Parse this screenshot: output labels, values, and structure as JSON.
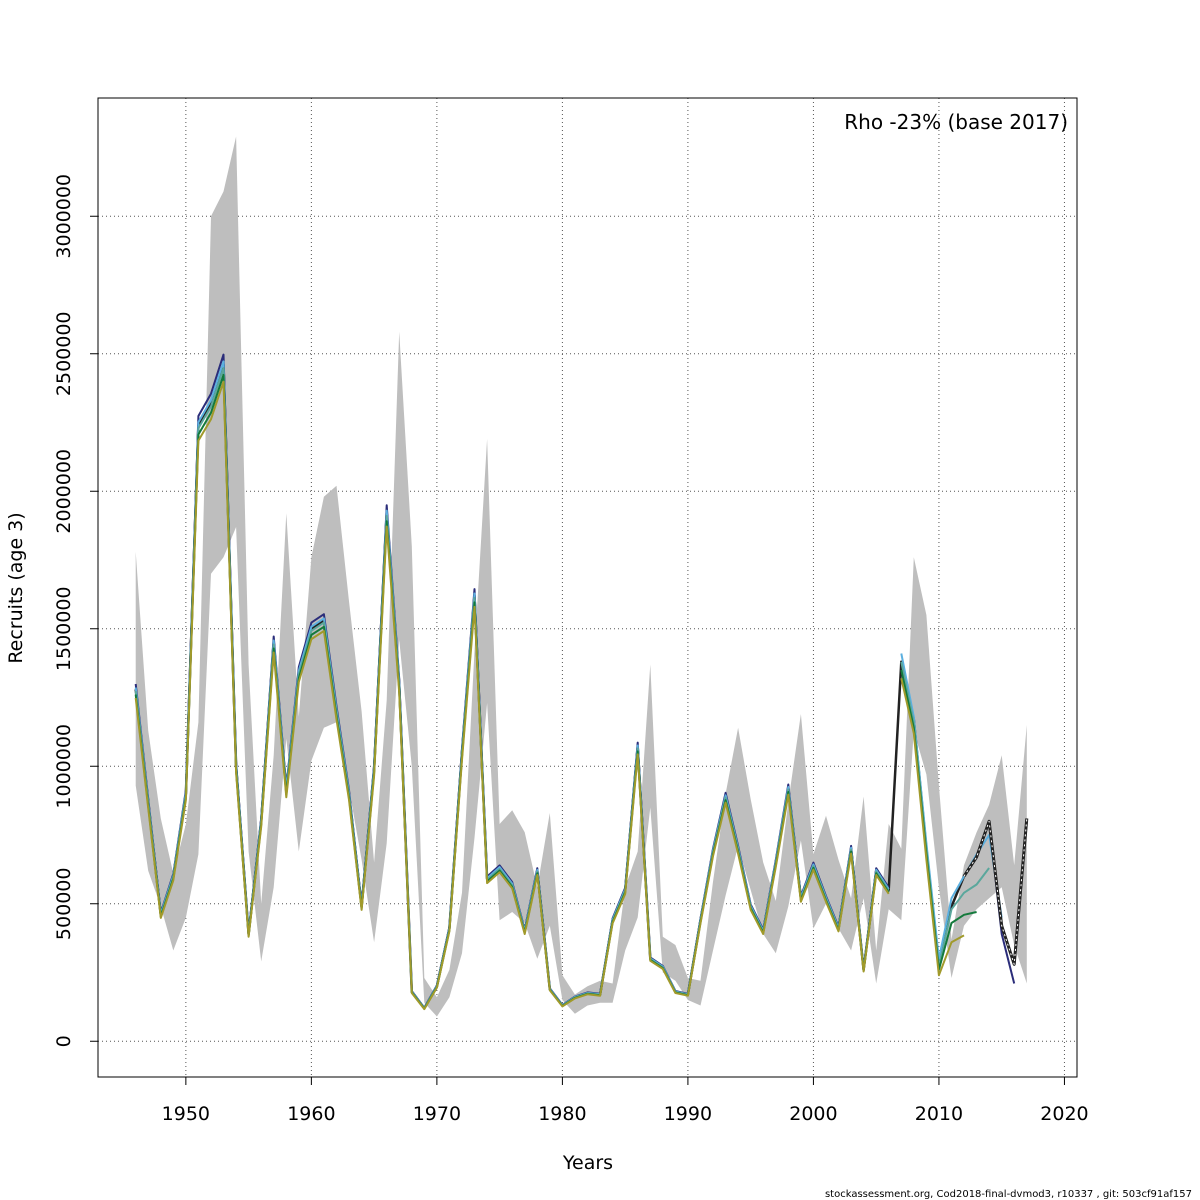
{
  "chart_data": {
    "type": "line",
    "title": "",
    "annotation": "Rho -23% (base 2017)",
    "xlabel": "Years",
    "ylabel": "Recruits (age 3)",
    "xlim": [
      1943,
      2021
    ],
    "ylim": [
      -130000,
      3430000
    ],
    "x_ticks": [
      1950,
      1960,
      1970,
      1980,
      1990,
      2000,
      2010,
      2020
    ],
    "y_ticks": [
      0,
      500000,
      1000000,
      1500000,
      2000000,
      2500000,
      3000000
    ],
    "grid": true,
    "band_color": "#bebebe",
    "years": [
      1946,
      1947,
      1948,
      1949,
      1950,
      1951,
      1952,
      1953,
      1954,
      1955,
      1956,
      1957,
      1958,
      1959,
      1960,
      1961,
      1962,
      1963,
      1964,
      1965,
      1966,
      1967,
      1968,
      1969,
      1970,
      1971,
      1972,
      1973,
      1974,
      1975,
      1976,
      1977,
      1978,
      1979,
      1980,
      1981,
      1982,
      1983,
      1984,
      1985,
      1986,
      1987,
      1988,
      1989,
      1990,
      1991,
      1992,
      1993,
      1994,
      1995,
      1996,
      1997,
      1998,
      1999,
      2000,
      2001,
      2002,
      2003,
      2004,
      2005,
      2006,
      2007,
      2008,
      2009,
      2010,
      2011,
      2012,
      2013,
      2014,
      2015,
      2016,
      2017
    ],
    "base": [
      1280000,
      870000,
      460000,
      600000,
      900000,
      2240000,
      2320000,
      2460000,
      1000000,
      390000,
      800000,
      1450000,
      910000,
      1340000,
      1500000,
      1530000,
      1200000,
      900000,
      490000,
      990000,
      1920000,
      1300000,
      180000,
      120000,
      200000,
      410000,
      1050000,
      1620000,
      590000,
      630000,
      570000,
      400000,
      620000,
      190000,
      130000,
      160000,
      175000,
      170000,
      440000,
      550000,
      1070000,
      300000,
      270000,
      180000,
      170000,
      440000,
      690000,
      890000,
      700000,
      490000,
      400000,
      650000,
      920000,
      520000,
      640000,
      520000,
      410000,
      700000,
      260000,
      620000,
      550000,
      1380000,
      1170000,
      700000,
      280000,
      490000,
      600000,
      670000,
      800000,
      420000,
      280000,
      810000
    ],
    "lower": [
      930000,
      620000,
      490000,
      330000,
      450000,
      680000,
      1700000,
      1760000,
      1870000,
      690000,
      290000,
      560000,
      1100000,
      690000,
      1020000,
      1140000,
      1160000,
      920000,
      660000,
      360000,
      720000,
      1460000,
      1000000,
      140000,
      90000,
      160000,
      320000,
      740000,
      1230000,
      440000,
      470000,
      430000,
      300000,
      420000,
      150000,
      100000,
      130000,
      140000,
      140000,
      330000,
      450000,
      850000,
      250000,
      220000,
      150000,
      130000,
      330000,
      530000,
      710000,
      550000,
      390000,
      320000,
      490000,
      730000,
      410000,
      500000,
      410000,
      330000,
      520000,
      210000,
      480000,
      440000,
      1130000,
      970000,
      560000,
      230000,
      420000,
      480000,
      520000,
      560000,
      350000,
      210000
    ],
    "upper": [
      1780000,
      1130000,
      810000,
      610000,
      790000,
      1160000,
      3000000,
      3090000,
      3290000,
      1370000,
      500000,
      1040000,
      1920000,
      1180000,
      1760000,
      1980000,
      2020000,
      1600000,
      1200000,
      650000,
      1240000,
      2580000,
      1800000,
      230000,
      160000,
      260000,
      540000,
      1420000,
      2190000,
      790000,
      840000,
      760000,
      560000,
      830000,
      240000,
      170000,
      200000,
      220000,
      210000,
      560000,
      690000,
      1370000,
      380000,
      350000,
      230000,
      220000,
      580000,
      900000,
      1140000,
      880000,
      650000,
      510000,
      870000,
      1190000,
      680000,
      820000,
      660000,
      520000,
      890000,
      330000,
      790000,
      700000,
      1760000,
      1550000,
      930000,
      370000,
      640000,
      760000,
      860000,
      1040000,
      640000,
      1150000
    ],
    "peels": [
      {
        "color": "#2b2d7a",
        "x": [
          2013,
          2014,
          2015,
          2016
        ],
        "y": [
          670000,
          800000,
          390000,
          210000
        ]
      },
      {
        "color": "#5cb0e0",
        "x": [
          2007,
          2008,
          2009,
          2010,
          2011,
          2012,
          2013,
          2014,
          2015
        ],
        "y": [
          1410000,
          1180000,
          720000,
          300000,
          520000,
          600000,
          680000,
          750000,
          450000
        ]
      },
      {
        "color": "#5aa79c",
        "x": [
          2007,
          2008,
          2009,
          2010,
          2011,
          2012,
          2013,
          2014
        ],
        "y": [
          1380000,
          1160000,
          700000,
          270000,
          480000,
          540000,
          570000,
          630000
        ]
      },
      {
        "color": "#147a3c",
        "x": [
          2007,
          2008,
          2009,
          2010,
          2011,
          2012,
          2013
        ],
        "y": [
          1350000,
          1140000,
          680000,
          260000,
          430000,
          460000,
          470000
        ]
      },
      {
        "color": "#a19a2b",
        "x": [
          2007,
          2008,
          2009,
          2010,
          2011,
          2012
        ],
        "y": [
          1320000,
          1120000,
          660000,
          240000,
          360000,
          385000
        ]
      }
    ],
    "base_series_color": "#222222",
    "footer": "stockassessment.org, Cod2018-final-dvmod3, r10337 , git: 503cf91af157"
  }
}
